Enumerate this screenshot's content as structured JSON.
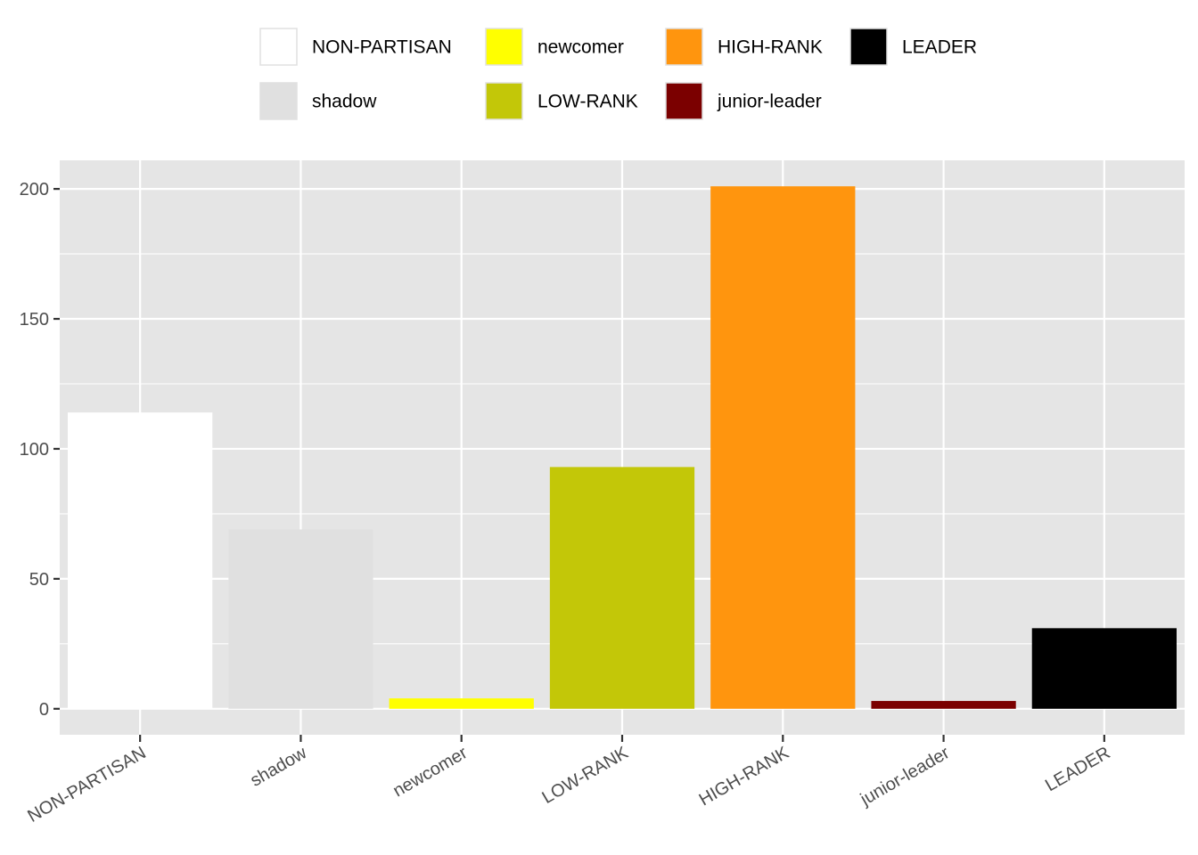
{
  "chart_data": {
    "type": "bar",
    "title": "",
    "xlabel": "",
    "ylabel": "",
    "categories": [
      "NON-PARTISAN",
      "shadow",
      "newcomer",
      "LOW-RANK",
      "HIGH-RANK",
      "junior-leader",
      "LEADER"
    ],
    "values": [
      114,
      69,
      4,
      93,
      201,
      3,
      31
    ],
    "colors": [
      "#FFFFFF",
      "#E0E0E0",
      "#FFFF00",
      "#C3C708",
      "#FF950E",
      "#7B0000",
      "#000000"
    ],
    "ylim": [
      -10,
      211
    ],
    "yticks": [
      0,
      50,
      100,
      150,
      200
    ],
    "grid": true,
    "legend_position": "top",
    "legend": [
      {
        "label": "NON-PARTISAN",
        "color": "#FFFFFF"
      },
      {
        "label": "shadow",
        "color": "#E0E0E0"
      },
      {
        "label": "newcomer",
        "color": "#FFFF00"
      },
      {
        "label": "LOW-RANK",
        "color": "#C3C708"
      },
      {
        "label": "HIGH-RANK",
        "color": "#FF950E"
      },
      {
        "label": "junior-leader",
        "color": "#7B0000"
      },
      {
        "label": "LEADER",
        "color": "#000000"
      }
    ],
    "panel_background": "#E5E5E5",
    "grid_color": "#FFFFFF"
  }
}
